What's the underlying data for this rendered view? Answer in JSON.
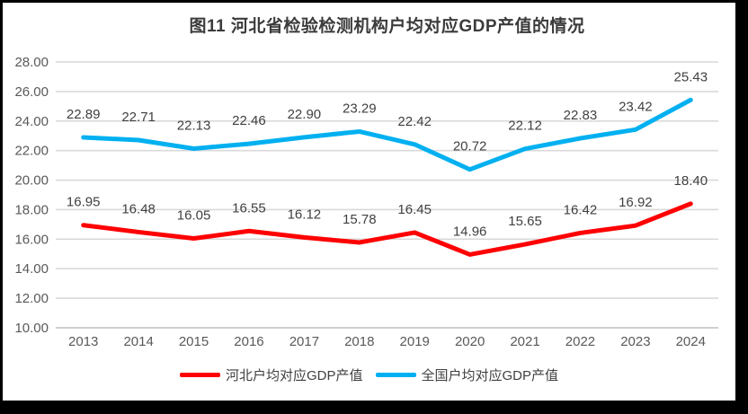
{
  "chart": {
    "title": "图11 河北省检验检测机构户均对应GDP产值的情况"
  },
  "chart_data": {
    "type": "line",
    "title": "图11 河北省检验检测机构户均对应GDP产值的情况",
    "categories": [
      "2013",
      "2014",
      "2015",
      "2016",
      "2017",
      "2018",
      "2019",
      "2020",
      "2021",
      "2022",
      "2023",
      "2024"
    ],
    "series": [
      {
        "id": "hebei",
        "name": "河北户均对应GDP产值",
        "color": "#FF0000",
        "values": [
          16.95,
          16.48,
          16.05,
          16.55,
          16.12,
          15.78,
          16.45,
          14.96,
          15.65,
          16.42,
          16.92,
          18.4
        ]
      },
      {
        "id": "national",
        "name": "全国户均对应GDP产值",
        "color": "#00B0F0",
        "values": [
          22.89,
          22.71,
          22.13,
          22.46,
          22.9,
          23.29,
          22.42,
          20.72,
          22.12,
          22.83,
          23.42,
          25.43
        ]
      }
    ],
    "xlabel": "",
    "ylabel": "",
    "ylim": [
      10,
      28
    ],
    "ytick_step": 2,
    "ytick_format_decimals": 2,
    "grid": true,
    "data_labels": true,
    "legend_position": "bottom",
    "colors": {
      "gridline": "#D9D9D9",
      "axis_line": "#BFBFBF",
      "tick_label": "#595959",
      "data_label": "#404040"
    }
  }
}
